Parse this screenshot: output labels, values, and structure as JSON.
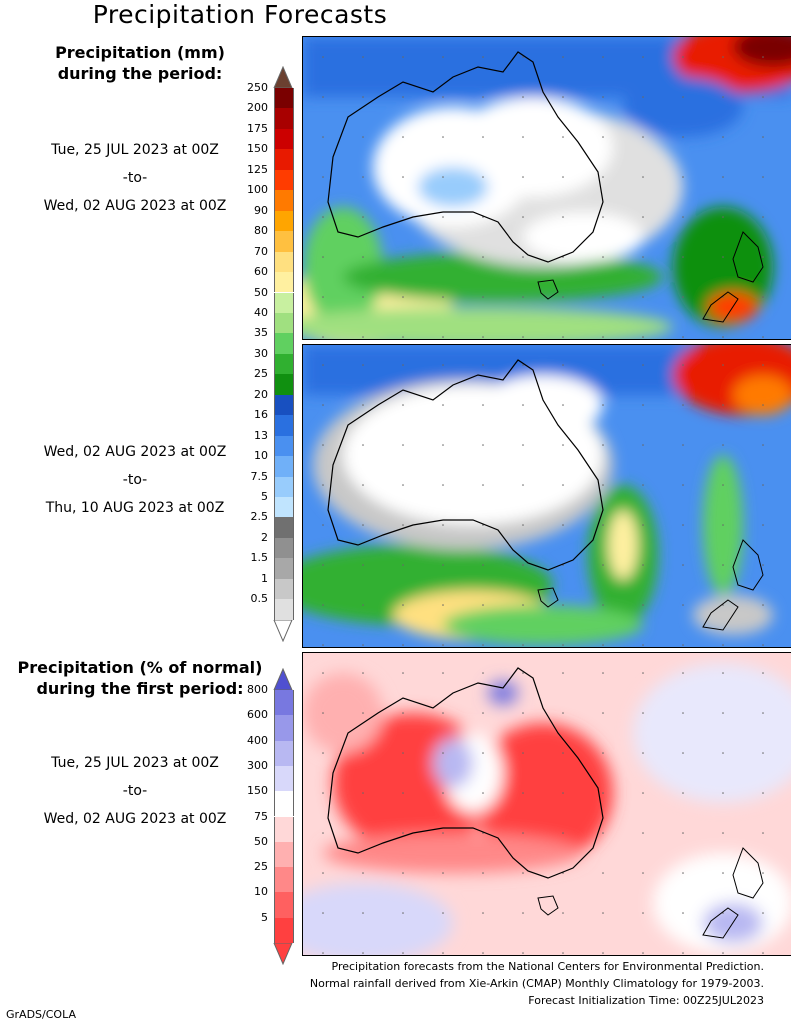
{
  "title": "Precipitation Forecasts",
  "legend_mm": {
    "heading_line1": "Precipitation (mm)",
    "heading_line2": "during the period:",
    "levels": [
      "250",
      "200",
      "175",
      "150",
      "125",
      "100",
      "90",
      "80",
      "70",
      "60",
      "50",
      "40",
      "35",
      "30",
      "25",
      "20",
      "16",
      "13",
      "10",
      "7.5",
      "5",
      "2.5",
      "2",
      "1.5",
      "1",
      "0.5"
    ],
    "colors": [
      "#6b4030",
      "#7a0000",
      "#a80000",
      "#cc0000",
      "#e81a00",
      "#ff3c00",
      "#ff7a00",
      "#ffa500",
      "#ffc040",
      "#ffe080",
      "#fff0a0",
      "#c8f0a0",
      "#a0e080",
      "#60d060",
      "#30b030",
      "#109010",
      "#1850c0",
      "#2a70e0",
      "#4a90f0",
      "#70b0f8",
      "#98ccfc",
      "#c0e4fe",
      "#707070",
      "#909090",
      "#a8a8a8",
      "#c8c8c8",
      "#e0e0e0"
    ],
    "top_cap_color": "#6b4030",
    "bottom_cap_color": "#ffffff"
  },
  "period1": {
    "start": "Tue, 25 JUL 2023 at 00Z",
    "sep": "-to-",
    "end": "Wed, 02 AUG 2023 at 00Z"
  },
  "period2": {
    "start": "Wed, 02 AUG 2023 at 00Z",
    "sep": "-to-",
    "end": "Thu, 10 AUG 2023 at 00Z"
  },
  "legend_pct": {
    "heading_line1": "Precipitation (% of normal)",
    "heading_line2": "during the first period:",
    "levels": [
      "800",
      "600",
      "400",
      "300",
      "150",
      "75",
      "50",
      "25",
      "10",
      "5"
    ],
    "colors": [
      "#5050d0",
      "#7878e0",
      "#9898ea",
      "#b8b8f2",
      "#d8d8fa",
      "#ffffff",
      "#ffd8d8",
      "#ffb0b0",
      "#ff8888",
      "#ff6060",
      "#ff4040"
    ]
  },
  "period3": {
    "start": "Tue, 25 JUL 2023 at 00Z",
    "sep": "-to-",
    "end": "Wed, 02 AUG 2023 at 00Z"
  },
  "footer": {
    "line1": "Precipitation forecasts from the National Centers for Environmental Prediction.",
    "line2": "Normal rainfall derived from Xie-Arkin (CMAP) Monthly Climatology for 1979-2003.",
    "line3": "Forecast Initialization Time: 00Z25JUL2023"
  },
  "credit": "GrADS/COLA"
}
